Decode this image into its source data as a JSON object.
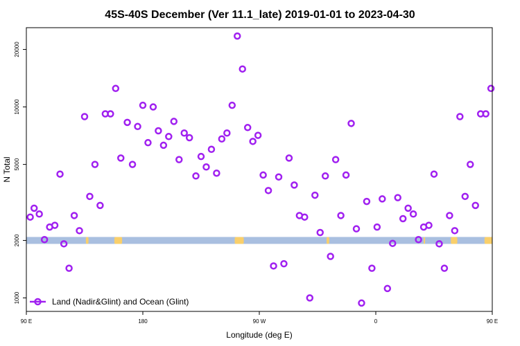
{
  "chart_data": {
    "type": "scatter",
    "title": "45S-40S December (Ver 11.1_late)   2019-01-01 to 2023-04-30",
    "xlabel": "Longitude (deg E)",
    "ylabel": "N Total",
    "x_range": [
      90,
      450
    ],
    "y_range": [
      850,
      26000
    ],
    "y_scale": "log",
    "x_ticks": [
      {
        "value": 90,
        "label": "90 E"
      },
      {
        "value": 180,
        "label": "180"
      },
      {
        "value": 270,
        "label": "90 W"
      },
      {
        "value": 360,
        "label": "0"
      },
      {
        "value": 450,
        "label": "90 E"
      }
    ],
    "y_ticks": [
      {
        "value": 1000,
        "label": "1000"
      },
      {
        "value": 2000,
        "label": "2000"
      },
      {
        "value": 5000,
        "label": "5000"
      },
      {
        "value": 10000,
        "label": "10000"
      },
      {
        "value": 20000,
        "label": "20000"
      }
    ],
    "legend": {
      "label": "Land (Nadir&Glint) and Ocean (Glint)",
      "position": "bottom-left"
    },
    "series": [
      {
        "name": "Land (Nadir&Glint) and Ocean (Glint)",
        "color": "#a020f0",
        "points": [
          [
            93,
            2650
          ],
          [
            96,
            2950
          ],
          [
            100,
            2750
          ],
          [
            104,
            2020
          ],
          [
            108,
            2350
          ],
          [
            112,
            2400
          ],
          [
            116,
            4450
          ],
          [
            119,
            1920
          ],
          [
            123,
            1430
          ],
          [
            127,
            2700
          ],
          [
            131,
            2250
          ],
          [
            135,
            8900
          ],
          [
            139,
            3400
          ],
          [
            143,
            5000
          ],
          [
            147,
            3050
          ],
          [
            151,
            9200
          ],
          [
            155,
            9200
          ],
          [
            159,
            12500
          ],
          [
            163,
            5400
          ],
          [
            168,
            8300
          ],
          [
            172,
            5000
          ],
          [
            176,
            7900
          ],
          [
            180,
            10200
          ],
          [
            184,
            6500
          ],
          [
            188,
            10000
          ],
          [
            192,
            7500
          ],
          [
            196,
            6300
          ],
          [
            200,
            7000
          ],
          [
            204,
            8400
          ],
          [
            208,
            5300
          ],
          [
            212,
            7300
          ],
          [
            216,
            6900
          ],
          [
            221,
            4350
          ],
          [
            225,
            5500
          ],
          [
            229,
            4850
          ],
          [
            233,
            6000
          ],
          [
            237,
            4500
          ],
          [
            241,
            6800
          ],
          [
            245,
            7300
          ],
          [
            249,
            10200
          ],
          [
            253,
            23500
          ],
          [
            257,
            15800
          ],
          [
            261,
            7800
          ],
          [
            265,
            6600
          ],
          [
            269,
            7100
          ],
          [
            273,
            4400
          ],
          [
            277,
            3650
          ],
          [
            281,
            1470
          ],
          [
            285,
            4300
          ],
          [
            289,
            1510
          ],
          [
            293,
            5400
          ],
          [
            297,
            3900
          ],
          [
            301,
            2700
          ],
          [
            305,
            2650
          ],
          [
            309,
            1000
          ],
          [
            313,
            3450
          ],
          [
            317,
            2200
          ],
          [
            321,
            4350
          ],
          [
            325,
            1650
          ],
          [
            329,
            5300
          ],
          [
            333,
            2700
          ],
          [
            337,
            4400
          ],
          [
            341,
            8200
          ],
          [
            345,
            2300
          ],
          [
            349,
            940
          ],
          [
            353,
            3200
          ],
          [
            357,
            1430
          ],
          [
            361,
            2350
          ],
          [
            365,
            3300
          ],
          [
            369,
            1120
          ],
          [
            373,
            1930
          ],
          [
            377,
            3350
          ],
          [
            381,
            2600
          ],
          [
            385,
            2950
          ],
          [
            389,
            2750
          ],
          [
            393,
            2020
          ],
          [
            397,
            2350
          ],
          [
            401,
            2400
          ],
          [
            405,
            4450
          ],
          [
            409,
            1920
          ],
          [
            413,
            1430
          ],
          [
            417,
            2700
          ],
          [
            421,
            2250
          ],
          [
            425,
            8900
          ],
          [
            429,
            3400
          ],
          [
            433,
            5000
          ],
          [
            437,
            3050
          ],
          [
            441,
            9200
          ],
          [
            445,
            9200
          ],
          [
            449,
            12500
          ]
        ]
      }
    ],
    "reference_band": {
      "y_center": 2000,
      "band_color": "#a9bfe0",
      "highlight_color": "#f9cf6b",
      "highlight_x": [
        [
          136,
          138
        ],
        [
          158,
          164
        ],
        [
          251,
          258
        ],
        [
          322,
          324
        ],
        [
          397,
          398
        ],
        [
          418,
          423
        ],
        [
          444,
          450
        ]
      ]
    }
  }
}
